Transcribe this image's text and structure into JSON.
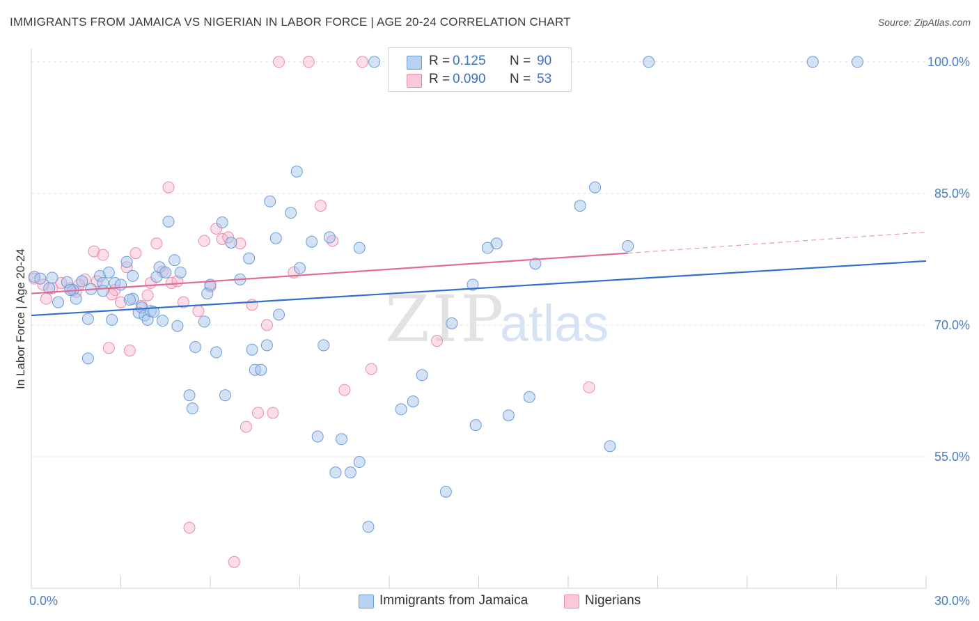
{
  "header": {
    "title": "IMMIGRANTS FROM JAMAICA VS NIGERIAN IN LABOR FORCE | AGE 20-24 CORRELATION CHART",
    "source": "Source: ZipAtlas.com"
  },
  "legend": {
    "rows": [
      {
        "r_label": "R =",
        "r_value": "0.125",
        "n_label": "N =",
        "n_value": "90"
      },
      {
        "r_label": "R =",
        "r_value": "0.090",
        "n_label": "N =",
        "n_value": "53"
      }
    ]
  },
  "bottom_legend": {
    "items": [
      {
        "label": "Immigrants from Jamaica"
      },
      {
        "label": "Nigerians"
      }
    ]
  },
  "watermark": {
    "zip": "ZIP",
    "atlas": "atlas"
  },
  "colors": {
    "jamaica_fill": "#a9c6ee",
    "jamaica_stroke": "#6b9ad8",
    "jamaica_line": "#2f6fcf",
    "nigerian_fill": "#f6b6cb",
    "nigerian_stroke": "#e98aab",
    "nigerian_line": "#e36a95",
    "tick_text": "#4a7cc4",
    "grid": "#e1e1e1"
  },
  "chart_data": {
    "type": "scatter",
    "title": "IMMIGRANTS FROM JAMAICA VS NIGERIAN IN LABOR FORCE | AGE 20-24 CORRELATION CHART",
    "xlabel": "",
    "ylabel": "In Labor Force | Age 20-24",
    "xlim": [
      0,
      30
    ],
    "ylim": [
      40,
      101.5
    ],
    "x_ticks": [
      {
        "value": 0,
        "label": "0.0%"
      },
      {
        "value": 30,
        "label": "30.0%"
      }
    ],
    "x_minor_ticks": [
      3,
      6,
      9,
      12,
      15,
      18,
      21,
      24,
      27
    ],
    "y_ticks": [
      {
        "value": 55,
        "label": "55.0%"
      },
      {
        "value": 70,
        "label": "70.0%"
      },
      {
        "value": 85,
        "label": "85.0%"
      },
      {
        "value": 100,
        "label": "100.0%"
      }
    ],
    "grid": true,
    "series": [
      {
        "name": "Immigrants from Jamaica",
        "R": 0.125,
        "N": 90,
        "trend": {
          "x0": 0,
          "y0": 71.1,
          "x1": 30,
          "y1": 77.3
        },
        "points": [
          [
            0.1,
            75.5
          ],
          [
            0.3,
            75.3
          ],
          [
            0.6,
            74.2
          ],
          [
            1.2,
            74.9
          ],
          [
            0.9,
            72.6
          ],
          [
            1.4,
            74.0
          ],
          [
            1.5,
            73.0
          ],
          [
            2.3,
            75.6
          ],
          [
            2.4,
            74.8
          ],
          [
            2.6,
            76.0
          ],
          [
            2.8,
            74.8
          ],
          [
            3.2,
            77.2
          ],
          [
            3.4,
            73.0
          ],
          [
            3.4,
            75.6
          ],
          [
            3.6,
            71.4
          ],
          [
            3.7,
            72.0
          ],
          [
            3.8,
            71.1
          ],
          [
            3.9,
            70.6
          ],
          [
            4.0,
            71.6
          ],
          [
            4.2,
            75.5
          ],
          [
            4.3,
            76.6
          ],
          [
            4.4,
            70.5
          ],
          [
            4.5,
            76.0
          ],
          [
            4.6,
            81.8
          ],
          [
            4.8,
            77.4
          ],
          [
            4.9,
            69.9
          ],
          [
            5.0,
            76.0
          ],
          [
            1.9,
            70.7
          ],
          [
            2.7,
            70.6
          ],
          [
            1.9,
            66.2
          ],
          [
            5.5,
            67.5
          ],
          [
            5.8,
            70.4
          ],
          [
            5.9,
            73.6
          ],
          [
            6.0,
            74.6
          ],
          [
            6.2,
            66.9
          ],
          [
            6.4,
            81.7
          ],
          [
            6.5,
            62.0
          ],
          [
            6.7,
            79.4
          ],
          [
            7.0,
            75.2
          ],
          [
            7.3,
            77.6
          ],
          [
            7.4,
            67.2
          ],
          [
            7.5,
            64.9
          ],
          [
            7.7,
            64.9
          ],
          [
            7.9,
            67.7
          ],
          [
            8.0,
            84.1
          ],
          [
            8.2,
            79.9
          ],
          [
            8.3,
            71.2
          ],
          [
            8.7,
            82.8
          ],
          [
            8.9,
            87.5
          ],
          [
            9.0,
            76.5
          ],
          [
            9.4,
            79.5
          ],
          [
            9.6,
            57.3
          ],
          [
            9.8,
            67.7
          ],
          [
            10.0,
            80.0
          ],
          [
            10.2,
            53.2
          ],
          [
            10.4,
            57.0
          ],
          [
            10.7,
            53.2
          ],
          [
            11.0,
            54.4
          ],
          [
            11.0,
            78.8
          ],
          [
            11.3,
            47.0
          ],
          [
            11.5,
            100.0
          ],
          [
            12.4,
            60.4
          ],
          [
            12.8,
            61.3
          ],
          [
            13.1,
            64.3
          ],
          [
            13.9,
            51.0
          ],
          [
            14.1,
            70.2
          ],
          [
            14.8,
            74.6
          ],
          [
            14.9,
            58.6
          ],
          [
            15.3,
            78.8
          ],
          [
            15.6,
            79.3
          ],
          [
            16.0,
            59.7
          ],
          [
            16.7,
            61.8
          ],
          [
            16.9,
            77.0
          ],
          [
            18.4,
            83.6
          ],
          [
            18.9,
            85.7
          ],
          [
            19.4,
            56.2
          ],
          [
            20.0,
            79.0
          ],
          [
            20.7,
            100.0
          ],
          [
            26.2,
            100.0
          ],
          [
            27.7,
            100.0
          ],
          [
            5.3,
            62.0
          ],
          [
            5.4,
            60.5
          ],
          [
            2.4,
            73.9
          ],
          [
            3.0,
            74.6
          ],
          [
            1.3,
            74.0
          ],
          [
            0.7,
            75.4
          ],
          [
            1.7,
            75.0
          ],
          [
            2.0,
            74.1
          ],
          [
            4.1,
            71.5
          ],
          [
            3.3,
            72.9
          ]
        ]
      },
      {
        "name": "Nigerians",
        "R": 0.09,
        "N": 53,
        "trend": {
          "x0": 0,
          "y0": 73.6,
          "x1": 20.0,
          "y1": 78.2
        },
        "trend_extension": {
          "x0": 20.0,
          "y0": 78.2,
          "x1": 30,
          "y1": 80.6
        },
        "points": [
          [
            0.1,
            75.3
          ],
          [
            0.4,
            74.6
          ],
          [
            0.5,
            73.0
          ],
          [
            0.7,
            74.2
          ],
          [
            1.0,
            74.8
          ],
          [
            1.3,
            74.2
          ],
          [
            1.5,
            73.8
          ],
          [
            1.8,
            75.2
          ],
          [
            2.1,
            78.4
          ],
          [
            2.2,
            75.0
          ],
          [
            2.4,
            78.0
          ],
          [
            2.6,
            67.4
          ],
          [
            2.8,
            74.0
          ],
          [
            3.0,
            72.6
          ],
          [
            3.2,
            76.6
          ],
          [
            3.3,
            67.1
          ],
          [
            3.5,
            78.2
          ],
          [
            3.7,
            72.2
          ],
          [
            3.9,
            73.4
          ],
          [
            4.0,
            74.8
          ],
          [
            4.2,
            79.3
          ],
          [
            4.4,
            76.1
          ],
          [
            4.6,
            85.7
          ],
          [
            4.7,
            74.8
          ],
          [
            4.9,
            75.0
          ],
          [
            5.1,
            72.6
          ],
          [
            5.3,
            46.9
          ],
          [
            5.6,
            71.6
          ],
          [
            5.8,
            79.6
          ],
          [
            6.0,
            74.4
          ],
          [
            6.2,
            81.0
          ],
          [
            6.4,
            79.8
          ],
          [
            6.6,
            80.0
          ],
          [
            6.8,
            43.0
          ],
          [
            7.0,
            79.3
          ],
          [
            7.2,
            58.4
          ],
          [
            7.4,
            72.3
          ],
          [
            7.6,
            60.0
          ],
          [
            7.9,
            70.0
          ],
          [
            8.1,
            60.0
          ],
          [
            8.3,
            100.0
          ],
          [
            8.8,
            76.0
          ],
          [
            9.3,
            100.0
          ],
          [
            9.7,
            83.6
          ],
          [
            10.1,
            79.6
          ],
          [
            10.5,
            62.6
          ],
          [
            11.1,
            100.0
          ],
          [
            11.4,
            65.0
          ],
          [
            13.6,
            68.2
          ],
          [
            14.3,
            100.0
          ],
          [
            18.7,
            62.9
          ],
          [
            2.7,
            73.5
          ],
          [
            1.6,
            74.6
          ]
        ]
      }
    ]
  }
}
